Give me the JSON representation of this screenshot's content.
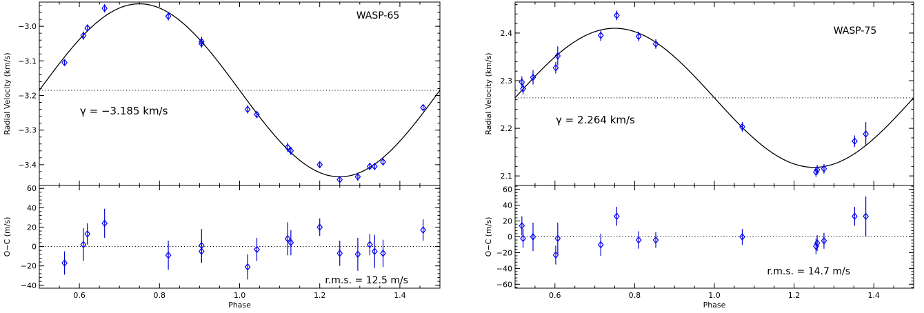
{
  "chart_data": [
    {
      "type": "scatter",
      "panel": "left",
      "title": "",
      "label": "WASP-65",
      "xlabel": "Phase",
      "xlim": [
        0.5,
        1.5
      ],
      "x_ticks": [
        "0.6",
        "0.8",
        "1.0",
        "1.2",
        "1.4"
      ],
      "top": {
        "ylabel": "Radial Velocity (km/s)",
        "ylim": [
          -3.46,
          -2.93
        ],
        "y_ticks": [
          -3.0,
          -3.1,
          -3.2,
          -3.3,
          -3.4
        ],
        "y_tick_labels": [
          "−3.0",
          "−3.1",
          "−3.2",
          "−3.3",
          "−3.4"
        ],
        "gamma": -3.185,
        "gamma_label": "γ = −3.185 km/s",
        "model": {
          "type": "sine",
          "offset": -3.185,
          "amplitude": 0.25,
          "peak_phase": 0.75
        },
        "points": [
          {
            "x": 0.563,
            "y": -3.105,
            "err": 0.007
          },
          {
            "x": 0.61,
            "y": -3.027,
            "err": 0.012
          },
          {
            "x": 0.62,
            "y": -3.005,
            "err": 0.01
          },
          {
            "x": 0.663,
            "y": -2.948,
            "err": 0.012
          },
          {
            "x": 0.822,
            "y": -2.971,
            "err": 0.012
          },
          {
            "x": 0.905,
            "y": -3.044,
            "err": 0.014
          },
          {
            "x": 0.905,
            "y": -3.05,
            "err": 0.012
          },
          {
            "x": 1.02,
            "y": -3.24,
            "err": 0.012
          },
          {
            "x": 1.043,
            "y": -3.255,
            "err": 0.01
          },
          {
            "x": 1.12,
            "y": -3.35,
            "err": 0.014
          },
          {
            "x": 1.128,
            "y": -3.36,
            "err": 0.012
          },
          {
            "x": 1.2,
            "y": -3.4,
            "err": 0.008
          },
          {
            "x": 1.25,
            "y": -3.443,
            "err": 0.008
          },
          {
            "x": 1.295,
            "y": -3.435,
            "err": 0.012
          },
          {
            "x": 1.325,
            "y": -3.405,
            "err": 0.008
          },
          {
            "x": 1.337,
            "y": -3.405,
            "err": 0.008
          },
          {
            "x": 1.358,
            "y": -3.392,
            "err": 0.008
          },
          {
            "x": 1.458,
            "y": -3.235,
            "err": 0.008
          }
        ]
      },
      "bottom": {
        "ylabel": "O−C (m/s)",
        "ylim": [
          -43,
          63
        ],
        "y_ticks": [
          -40,
          -20,
          0,
          20,
          40,
          60
        ],
        "y_tick_labels": [
          "−40",
          "−20",
          "0",
          "20",
          "40",
          "60"
        ],
        "rms_label": "r.m.s. = 12.5 m/s",
        "points": [
          {
            "x": 0.563,
            "y": -17,
            "err": 12
          },
          {
            "x": 0.61,
            "y": 2,
            "err": 17
          },
          {
            "x": 0.62,
            "y": 13,
            "err": 11
          },
          {
            "x": 0.663,
            "y": 24,
            "err": 15
          },
          {
            "x": 0.822,
            "y": -9,
            "err": 15
          },
          {
            "x": 0.905,
            "y": 1,
            "err": 17
          },
          {
            "x": 0.905,
            "y": -5,
            "err": 12
          },
          {
            "x": 1.02,
            "y": -21,
            "err": 13
          },
          {
            "x": 1.043,
            "y": -3,
            "err": 12
          },
          {
            "x": 1.12,
            "y": 8,
            "err": 17
          },
          {
            "x": 1.128,
            "y": 4,
            "err": 13
          },
          {
            "x": 1.2,
            "y": 20,
            "err": 9
          },
          {
            "x": 1.25,
            "y": -7,
            "err": 13
          },
          {
            "x": 1.295,
            "y": -8,
            "err": 17
          },
          {
            "x": 1.325,
            "y": 2,
            "err": 11
          },
          {
            "x": 1.337,
            "y": -5,
            "err": 17
          },
          {
            "x": 1.358,
            "y": -7,
            "err": 14
          },
          {
            "x": 1.458,
            "y": 17,
            "err": 11
          }
        ]
      }
    },
    {
      "type": "scatter",
      "panel": "right",
      "title": "",
      "label": "WASP-75",
      "xlabel": "Phase",
      "xlim": [
        0.5,
        1.5
      ],
      "x_ticks": [
        "0.6",
        "0.8",
        "1.0",
        "1.2",
        "1.4"
      ],
      "top": {
        "ylabel": "Radial Velocity (km/s)",
        "ylim": [
          2.08,
          2.465
        ],
        "y_ticks": [
          2.1,
          2.2,
          2.3,
          2.4
        ],
        "y_tick_labels": [
          "2.1",
          "2.2",
          "2.3",
          "2.4"
        ],
        "gamma": 2.264,
        "gamma_label": "γ = 2.264 km/s",
        "model": {
          "type": "sine",
          "offset": 2.264,
          "amplitude": 0.146,
          "peak_phase": 0.75
        },
        "points": [
          {
            "x": 0.517,
            "y": 2.297,
            "err": 0.012
          },
          {
            "x": 0.52,
            "y": 2.283,
            "err": 0.012
          },
          {
            "x": 0.545,
            "y": 2.307,
            "err": 0.015
          },
          {
            "x": 0.602,
            "y": 2.327,
            "err": 0.012
          },
          {
            "x": 0.607,
            "y": 2.352,
            "err": 0.02
          },
          {
            "x": 0.715,
            "y": 2.395,
            "err": 0.012
          },
          {
            "x": 0.755,
            "y": 2.437,
            "err": 0.01
          },
          {
            "x": 0.81,
            "y": 2.393,
            "err": 0.01
          },
          {
            "x": 0.853,
            "y": 2.377,
            "err": 0.01
          },
          {
            "x": 1.07,
            "y": 2.203,
            "err": 0.01
          },
          {
            "x": 1.255,
            "y": 2.108,
            "err": 0.01
          },
          {
            "x": 1.258,
            "y": 2.113,
            "err": 0.01
          },
          {
            "x": 1.275,
            "y": 2.115,
            "err": 0.01
          },
          {
            "x": 1.352,
            "y": 2.173,
            "err": 0.012
          },
          {
            "x": 1.38,
            "y": 2.188,
            "err": 0.025
          }
        ]
      },
      "bottom": {
        "ylabel": "O−C (m/s)",
        "ylim": [
          -65,
          65
        ],
        "y_ticks": [
          -60,
          -40,
          -20,
          0,
          20,
          40,
          60
        ],
        "y_tick_labels": [
          "−60",
          "−40",
          "−20",
          "0",
          "20",
          "40",
          "60"
        ],
        "rms_label": "r.m.s. = 14.7 m/s",
        "points": [
          {
            "x": 0.517,
            "y": 14,
            "err": 12
          },
          {
            "x": 0.52,
            "y": -2,
            "err": 12
          },
          {
            "x": 0.545,
            "y": 0,
            "err": 18
          },
          {
            "x": 0.602,
            "y": -23,
            "err": 12
          },
          {
            "x": 0.607,
            "y": -2,
            "err": 20
          },
          {
            "x": 0.715,
            "y": -10,
            "err": 14
          },
          {
            "x": 0.755,
            "y": 26,
            "err": 12
          },
          {
            "x": 0.81,
            "y": -4,
            "err": 11
          },
          {
            "x": 0.853,
            "y": -4,
            "err": 10
          },
          {
            "x": 1.07,
            "y": 0,
            "err": 10
          },
          {
            "x": 1.255,
            "y": -12,
            "err": 10
          },
          {
            "x": 1.258,
            "y": -8,
            "err": 10
          },
          {
            "x": 1.275,
            "y": -5,
            "err": 10
          },
          {
            "x": 1.352,
            "y": 26,
            "err": 12
          },
          {
            "x": 1.38,
            "y": 26,
            "err": 25
          }
        ]
      }
    }
  ],
  "colors": {
    "points": "#0000ff",
    "errorbars": "#0000cc",
    "model": "#000000",
    "reference": "#000000"
  }
}
